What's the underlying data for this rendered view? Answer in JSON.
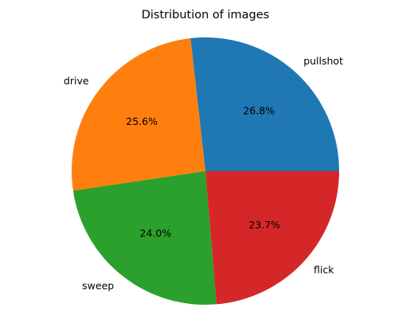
{
  "chart_data": {
    "type": "pie",
    "title": "Distribution of images",
    "categories": [
      "pullshot",
      "drive",
      "sweep",
      "flick"
    ],
    "values": [
      26.8,
      25.6,
      24.0,
      23.7
    ],
    "value_labels": [
      "26.8%",
      "25.6%",
      "24.0%",
      "23.7%"
    ],
    "colors": [
      "#1f77b4",
      "#ff7f0e",
      "#2ca02c",
      "#d62728"
    ],
    "start_angle_deg": 0,
    "direction": "counterclockwise",
    "legend": "none"
  }
}
